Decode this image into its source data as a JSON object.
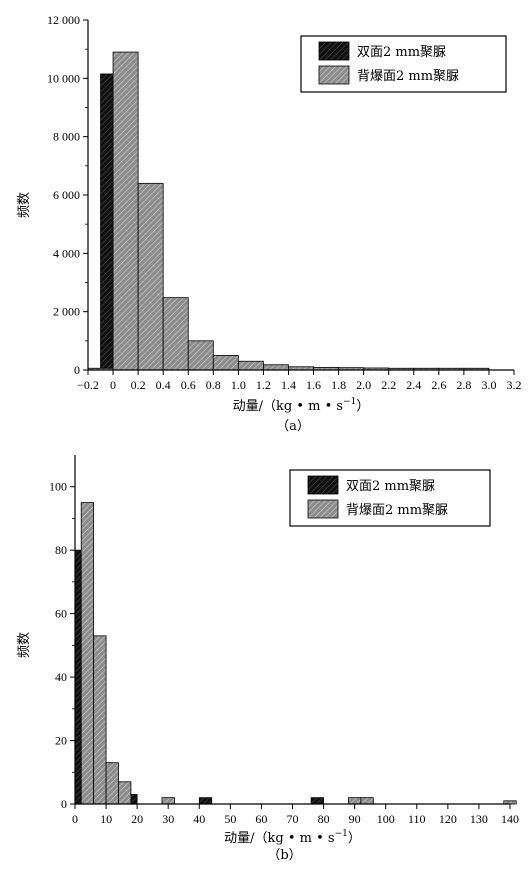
{
  "chart_data": [
    {
      "type": "bar",
      "panel_label": "（a）",
      "xlabel": "动量/（kg • m • s",
      "xlabel_sup": "−1",
      "xlabel_close": "）",
      "ylabel": "频数",
      "xlim": [
        -0.2,
        3.2
      ],
      "ylim": [
        0,
        12000
      ],
      "xticks": [
        -0.2,
        0,
        0.2,
        0.4,
        0.6,
        0.8,
        1.0,
        1.2,
        1.4,
        1.6,
        1.8,
        2.0,
        2.2,
        2.4,
        2.6,
        2.8,
        3.0,
        3.2
      ],
      "xtick_labels": [
        "−0.2",
        "0",
        "0.2",
        "0.4",
        "0.6",
        "0.8",
        "1.0",
        "1.2",
        "1.4",
        "1.6",
        "1.8",
        "2.0",
        "2.2",
        "2.4",
        "2.6",
        "2.8",
        "3.0",
        "3.2"
      ],
      "yticks": [
        0,
        2000,
        4000,
        6000,
        8000,
        10000,
        12000
      ],
      "ytick_labels": [
        "0",
        "2 000",
        "4 000",
        "6 000",
        "8 000",
        "10 000",
        "12 000"
      ],
      "bin_width": 0.2,
      "legend_position": "top-right",
      "series": [
        {
          "name": "双面2 mm聚脲",
          "color": "#111111",
          "pattern": "dark-hatch",
          "x": [
            0.0,
            0.2,
            0.4,
            0.6,
            0.8,
            1.0,
            1.2,
            1.4,
            1.6,
            1.8,
            2.0,
            2.2,
            2.4,
            2.6,
            2.8
          ],
          "values": [
            10150,
            5780,
            2130,
            850,
            350,
            220,
            130,
            80,
            60,
            40,
            30,
            30,
            20,
            20,
            20
          ]
        },
        {
          "name": "背爆面2 mm聚脲",
          "color": "#8a8a8a",
          "pattern": "gray-hatch",
          "x": [
            -0.1,
            0.1,
            0.3,
            0.5,
            0.7,
            0.9,
            1.1,
            1.3,
            1.5,
            1.7,
            1.9,
            2.1,
            2.3,
            2.5,
            2.7,
            2.9
          ],
          "values": [
            60,
            10900,
            6400,
            2480,
            1000,
            500,
            300,
            180,
            110,
            90,
            80,
            70,
            60,
            60,
            60,
            60
          ]
        }
      ]
    },
    {
      "type": "bar",
      "panel_label": "（b）",
      "xlabel": "动量/（kg • m • s",
      "xlabel_sup": "−1",
      "xlabel_close": "）",
      "ylabel": "频数",
      "xlim": [
        0,
        140
      ],
      "ylim": [
        0,
        110
      ],
      "xticks": [
        0,
        10,
        20,
        30,
        40,
        50,
        60,
        70,
        80,
        90,
        100,
        110,
        120,
        130,
        140
      ],
      "xtick_labels": [
        "0",
        "10",
        "20",
        "30",
        "40",
        "50",
        "60",
        "70",
        "80",
        "90",
        "100",
        "110",
        "120",
        "130",
        "140"
      ],
      "yticks": [
        0,
        20,
        40,
        60,
        80,
        100
      ],
      "ytick_labels": [
        "0",
        "20",
        "40",
        "60",
        "80",
        "100"
      ],
      "bin_width": 4,
      "legend_position": "top-right",
      "series": [
        {
          "name": "双面2 mm聚脲",
          "color": "#111111",
          "pattern": "dark-hatch",
          "x": [
            2,
            6,
            10,
            14,
            18,
            42,
            78
          ],
          "values": [
            80,
            52,
            13,
            6,
            3,
            2,
            2
          ]
        },
        {
          "name": "背爆面2 mm聚脲",
          "color": "#8a8a8a",
          "pattern": "gray-hatch",
          "x": [
            4,
            8,
            12,
            16,
            30,
            90,
            94,
            140
          ],
          "values": [
            95,
            53,
            13,
            7,
            2,
            2,
            2,
            1
          ]
        }
      ]
    }
  ]
}
